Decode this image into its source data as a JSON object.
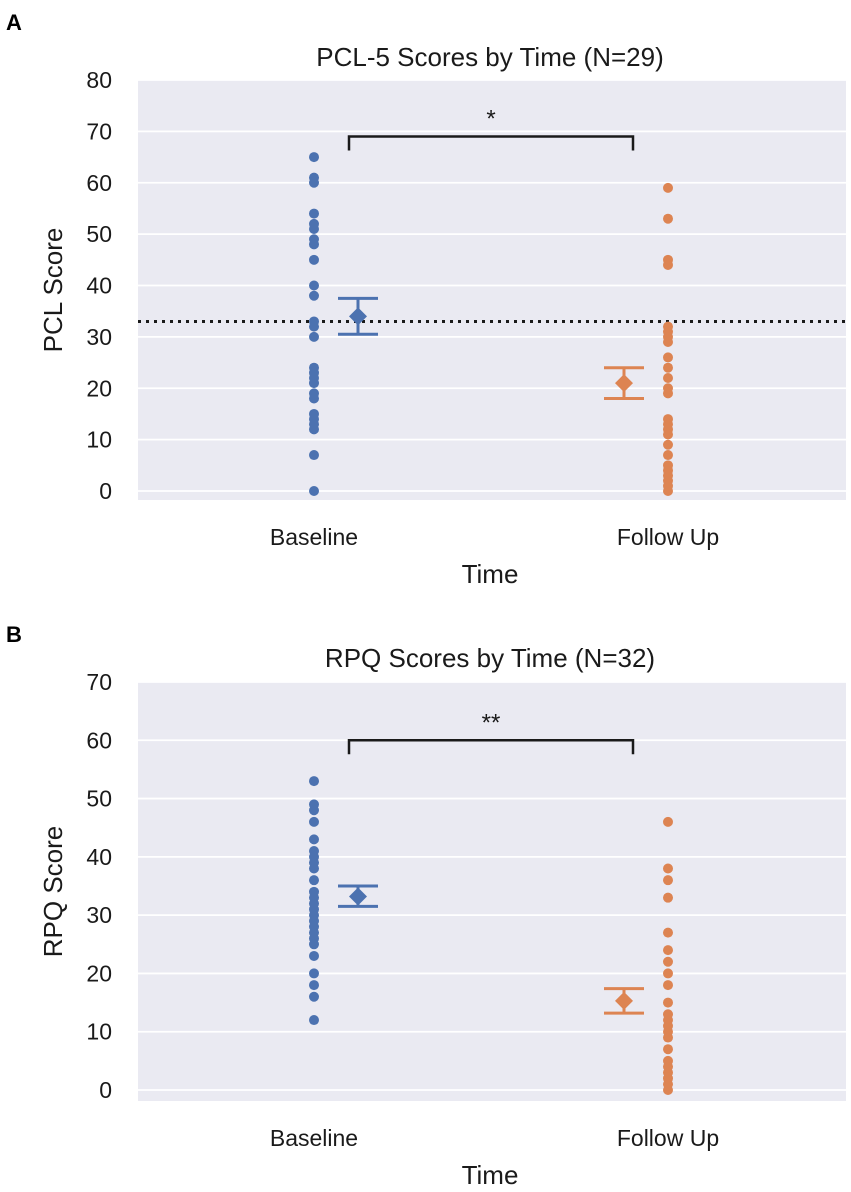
{
  "chart_data": [
    {
      "panel": "A",
      "type": "scatter",
      "title": "PCL-5 Scores by Time (N=29)",
      "xlabel": "Time",
      "ylabel": "PCL Score",
      "ylim": [
        0,
        80
      ],
      "yticks": [
        "0",
        "10",
        "20",
        "30",
        "40",
        "50",
        "60",
        "70",
        "80"
      ],
      "categories": [
        "Baseline",
        "Follow Up"
      ],
      "grid": true,
      "series": [
        {
          "name": "Baseline",
          "color": "#4c72b0",
          "values": [
            65,
            61,
            60,
            54,
            52,
            51,
            49,
            48,
            45,
            40,
            38,
            33,
            32,
            30,
            24,
            23,
            22,
            21,
            19,
            18,
            15,
            14,
            13,
            12,
            7,
            0
          ],
          "mean": 34,
          "ci": [
            30.5,
            37.5
          ]
        },
        {
          "name": "Follow Up",
          "color": "#dd8452",
          "values": [
            59,
            53,
            45,
            44,
            32,
            31,
            30,
            29,
            26,
            24,
            22,
            20,
            19,
            14,
            13,
            12,
            11,
            9,
            7,
            5,
            4,
            3,
            2,
            1,
            0
          ],
          "mean": 21,
          "ci": [
            18,
            24
          ]
        }
      ],
      "reference_line": 33,
      "significance": {
        "y": 69,
        "label": "*"
      }
    },
    {
      "panel": "B",
      "type": "scatter",
      "title": "RPQ Scores by Time (N=32)",
      "xlabel": "Time",
      "ylabel": "RPQ Score",
      "ylim": [
        0,
        70
      ],
      "yticks": [
        "0",
        "10",
        "20",
        "30",
        "40",
        "50",
        "60",
        "70"
      ],
      "categories": [
        "Baseline",
        "Follow Up"
      ],
      "grid": true,
      "series": [
        {
          "name": "Baseline",
          "color": "#4c72b0",
          "values": [
            53,
            49,
            48,
            46,
            43,
            41,
            40,
            39,
            38,
            36,
            34,
            33,
            32,
            31,
            30,
            29,
            28,
            27,
            26,
            25,
            23,
            20,
            18,
            16,
            12
          ],
          "mean": 33.2,
          "ci": [
            31.5,
            35
          ]
        },
        {
          "name": "Follow Up",
          "color": "#dd8452",
          "values": [
            46,
            38,
            36,
            33,
            27,
            24,
            22,
            20,
            18,
            15,
            13,
            12,
            11,
            10,
            9,
            7,
            5,
            4,
            3,
            2,
            1,
            0
          ],
          "mean": 15.3,
          "ci": [
            13.2,
            17.4
          ]
        }
      ],
      "significance": {
        "y": 60,
        "label": "**"
      }
    }
  ]
}
